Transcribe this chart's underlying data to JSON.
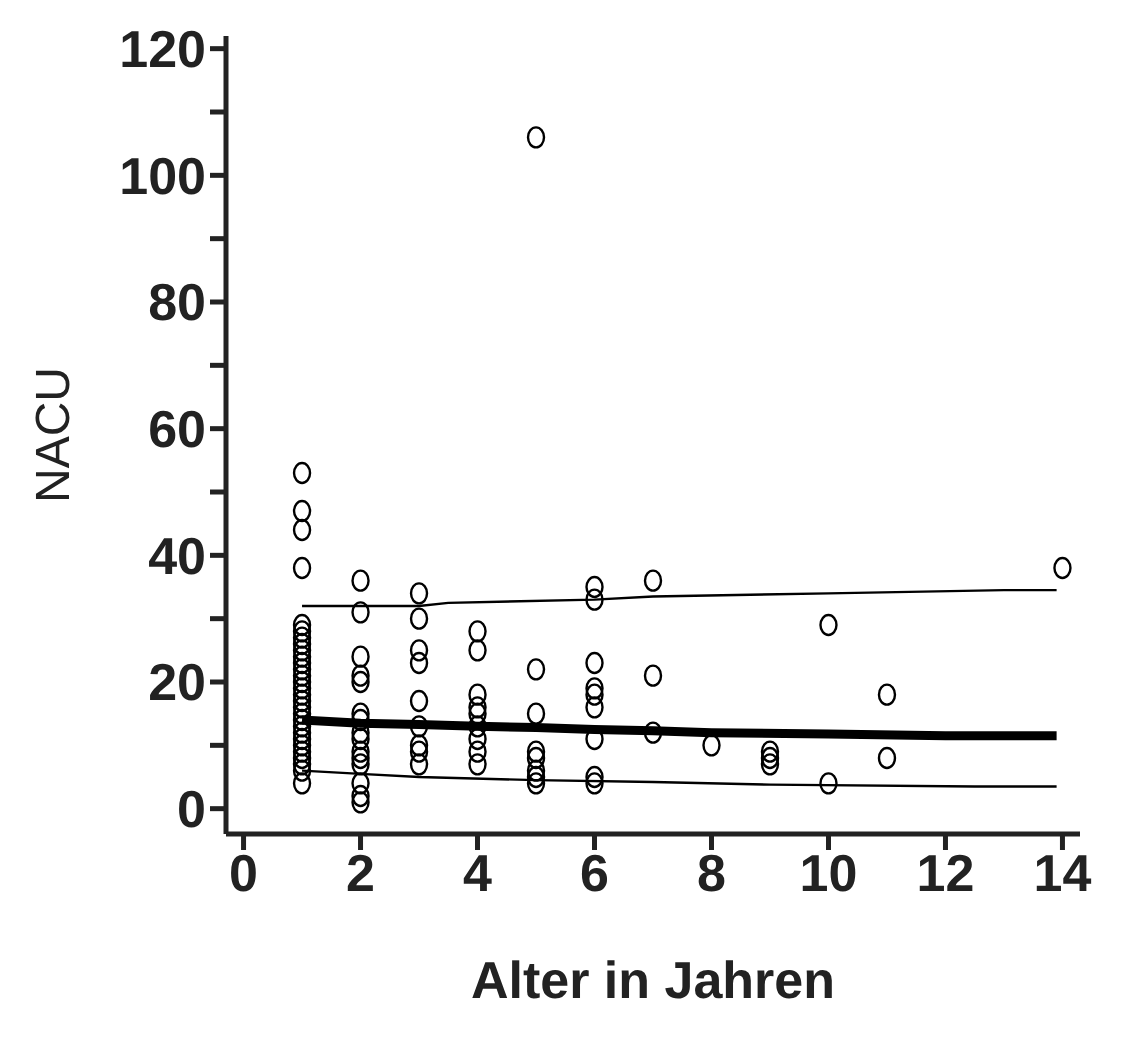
{
  "chart_data": {
    "type": "scatter",
    "xlabel": "Alter in Jahren",
    "ylabel": "NACU",
    "xlim": [
      -0.3,
      14.3
    ],
    "xticks": [
      0,
      2,
      4,
      6,
      8,
      10,
      12,
      14
    ],
    "ylim": [
      -4,
      122
    ],
    "yticks": [
      0,
      {
        "value": 10,
        "label": null
      },
      20,
      {
        "value": 30,
        "label": null
      },
      40,
      {
        "value": 50,
        "label": null
      },
      60,
      {
        "value": 70,
        "label": null
      },
      80,
      {
        "value": 90,
        "label": null
      },
      100,
      {
        "value": 110,
        "label": null
      },
      120
    ],
    "grid": false,
    "legend": false,
    "marker": "circle",
    "series": [
      {
        "color": "#000000",
        "x": [
          1,
          1,
          1,
          1,
          1,
          1,
          1,
          1,
          1,
          1,
          1,
          1,
          1,
          1,
          1,
          1,
          1,
          1,
          1,
          1,
          1,
          1,
          1,
          1,
          1,
          1,
          1,
          1,
          1,
          2,
          2,
          2,
          2,
          2,
          2,
          2,
          2,
          2,
          2,
          2,
          2,
          2,
          2,
          2,
          3,
          3,
          3,
          3,
          3,
          3,
          3,
          3,
          3,
          4,
          4,
          4,
          4,
          4,
          4,
          4,
          4,
          4,
          5,
          5,
          5,
          5,
          5,
          5,
          5,
          5,
          6,
          6,
          6,
          6,
          6,
          6,
          6,
          6,
          6,
          7,
          7,
          7,
          8,
          9,
          9,
          9,
          10,
          10,
          11,
          11,
          14
        ],
        "values": [
          53,
          47,
          44,
          38,
          29,
          28,
          27,
          26,
          25,
          24,
          23,
          22,
          21,
          20,
          19,
          18,
          17,
          16,
          15,
          14,
          13,
          12,
          11,
          10,
          9,
          8,
          7,
          6,
          4,
          36,
          31,
          24,
          21,
          20,
          15,
          14,
          12,
          11,
          9,
          8,
          7,
          4,
          2,
          1,
          34,
          30,
          25,
          23,
          17,
          13,
          10,
          9,
          7,
          28,
          25,
          18,
          16,
          15,
          13,
          11,
          9,
          7,
          106,
          22,
          15,
          9,
          8,
          6,
          5,
          4,
          35,
          33,
          23,
          19,
          18,
          16,
          11,
          5,
          4,
          36,
          21,
          12,
          10,
          9,
          8,
          7,
          29,
          4,
          18,
          8,
          38
        ]
      },
      {
        "type": "line",
        "color": "#000000",
        "line_style": "solid",
        "marker": "none",
        "x": [
          1,
          3,
          3.5,
          6,
          7,
          10,
          13,
          13.9
        ],
        "values": [
          32,
          32,
          32.5,
          33,
          33.5,
          34,
          34.5,
          34.5
        ]
      },
      {
        "type": "line",
        "color": "#000000",
        "line_style": "solid",
        "marker": "none",
        "x": [
          1,
          2,
          3,
          4,
          5,
          6,
          7,
          8,
          10,
          12,
          13.9
        ],
        "values": [
          14,
          13.5,
          13.3,
          13,
          12.8,
          12.5,
          12.3,
          12,
          11.8,
          11.5,
          11.5
        ]
      },
      {
        "type": "line",
        "color": "#000000",
        "line_style": "solid",
        "marker": "none",
        "x": [
          1,
          2,
          3,
          5,
          7,
          9,
          12.5,
          13.9
        ],
        "values": [
          6,
          5.5,
          5,
          4.5,
          4.2,
          3.8,
          3.5,
          3.5
        ]
      }
    ]
  }
}
